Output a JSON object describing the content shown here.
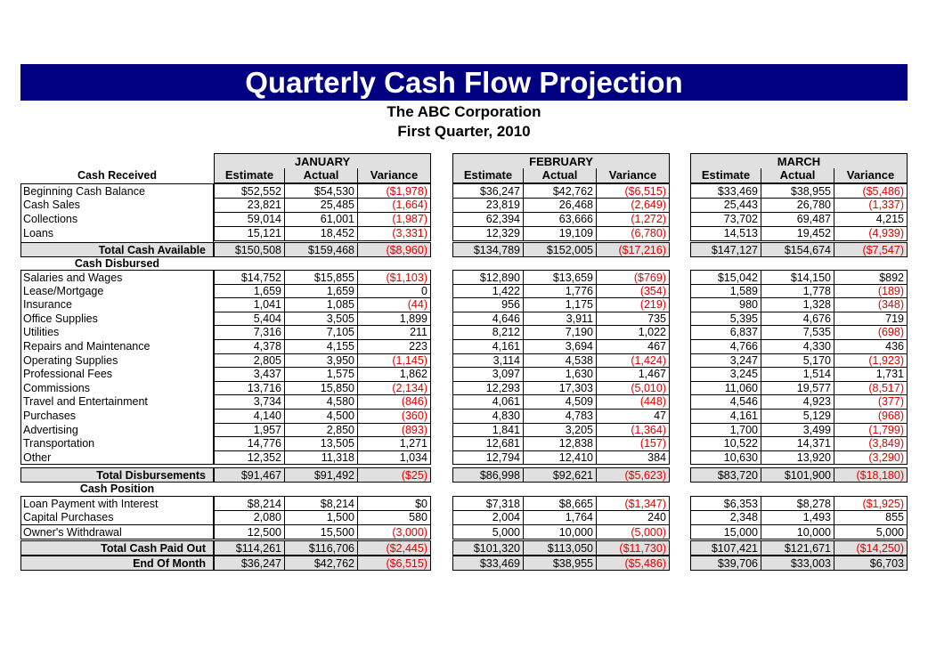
{
  "title": "Quarterly Cash Flow Projection",
  "company": "The ABC Corporation",
  "period": "First Quarter, 2010",
  "months": [
    "JANUARY",
    "FEBRUARY",
    "MARCH"
  ],
  "column_headers": [
    "Estimate",
    "Actual",
    "Variance"
  ],
  "colors": {
    "banner": "#000080",
    "header_fill": "#e0e0e0",
    "negative": "#e00000"
  },
  "sections": [
    {
      "heading": "Cash Received",
      "rows": [
        {
          "label": "Beginning Cash Balance",
          "values": [
            "$52,552",
            "$54,530",
            "($1,978)",
            "$36,247",
            "$42,762",
            "($6,515)",
            "$33,469",
            "$38,955",
            "($5,486)"
          ]
        },
        {
          "label": "Cash Sales",
          "values": [
            "23,821",
            "25,485",
            "(1,664)",
            "23,819",
            "26,468",
            "(2,649)",
            "25,443",
            "26,780",
            "(1,337)"
          ]
        },
        {
          "label": "Collections",
          "values": [
            "59,014",
            "61,001",
            "(1,987)",
            "62,394",
            "63,666",
            "(1,272)",
            "73,702",
            "69,487",
            "4,215"
          ]
        },
        {
          "label": "Loans",
          "values": [
            "15,121",
            "18,452",
            "(3,331)",
            "12,329",
            "19,109",
            "(6,780)",
            "14,513",
            "19,452",
            "(4,939)"
          ]
        }
      ],
      "total": {
        "label": "Total Cash Available",
        "values": [
          "$150,508",
          "$159,468",
          "($8,960)",
          "$134,789",
          "$152,005",
          "($17,216)",
          "$147,127",
          "$154,674",
          "($7,547)"
        ]
      }
    },
    {
      "heading": "Cash Disbursed",
      "rows": [
        {
          "label": "Salaries and Wages",
          "values": [
            "$14,752",
            "$15,855",
            "($1,103)",
            "$12,890",
            "$13,659",
            "($769)",
            "$15,042",
            "$14,150",
            "$892"
          ]
        },
        {
          "label": "Lease/Mortgage",
          "values": [
            "1,659",
            "1,659",
            "0",
            "1,422",
            "1,776",
            "(354)",
            "1,589",
            "1,778",
            "(189)"
          ]
        },
        {
          "label": "Insurance",
          "values": [
            "1,041",
            "1,085",
            "(44)",
            "956",
            "1,175",
            "(219)",
            "980",
            "1,328",
            "(348)"
          ]
        },
        {
          "label": "Office Supplies",
          "values": [
            "5,404",
            "3,505",
            "1,899",
            "4,646",
            "3,911",
            "735",
            "5,395",
            "4,676",
            "719"
          ]
        },
        {
          "label": "Utilities",
          "values": [
            "7,316",
            "7,105",
            "211",
            "8,212",
            "7,190",
            "1,022",
            "6,837",
            "7,535",
            "(698)"
          ]
        },
        {
          "label": "Repairs and Maintenance",
          "values": [
            "4,378",
            "4,155",
            "223",
            "4,161",
            "3,694",
            "467",
            "4,766",
            "4,330",
            "436"
          ]
        },
        {
          "label": "Operating Supplies",
          "values": [
            "2,805",
            "3,950",
            "(1,145)",
            "3,114",
            "4,538",
            "(1,424)",
            "3,247",
            "5,170",
            "(1,923)"
          ]
        },
        {
          "label": "Professional Fees",
          "values": [
            "3,437",
            "1,575",
            "1,862",
            "3,097",
            "1,630",
            "1,467",
            "3,245",
            "1,514",
            "1,731"
          ]
        },
        {
          "label": "Commissions",
          "values": [
            "13,716",
            "15,850",
            "(2,134)",
            "12,293",
            "17,303",
            "(5,010)",
            "11,060",
            "19,577",
            "(8,517)"
          ]
        },
        {
          "label": "Travel and Entertainment",
          "values": [
            "3,734",
            "4,580",
            "(846)",
            "4,061",
            "4,509",
            "(448)",
            "4,546",
            "4,923",
            "(377)"
          ]
        },
        {
          "label": "Purchases",
          "values": [
            "4,140",
            "4,500",
            "(360)",
            "4,830",
            "4,783",
            "47",
            "4,161",
            "5,129",
            "(968)"
          ]
        },
        {
          "label": "Advertising",
          "values": [
            "1,957",
            "2,850",
            "(893)",
            "1,841",
            "3,205",
            "(1,364)",
            "1,700",
            "3,499",
            "(1,799)"
          ]
        },
        {
          "label": "Transportation",
          "values": [
            "14,776",
            "13,505",
            "1,271",
            "12,681",
            "12,838",
            "(157)",
            "10,522",
            "14,371",
            "(3,849)"
          ]
        },
        {
          "label": "Other",
          "values": [
            "12,352",
            "11,318",
            "1,034",
            "12,794",
            "12,410",
            "384",
            "10,630",
            "13,920",
            "(3,290)"
          ]
        }
      ],
      "total": {
        "label": "Total Disbursements",
        "values": [
          "$91,467",
          "$91,492",
          "($25)",
          "$86,998",
          "$92,621",
          "($5,623)",
          "$83,720",
          "$101,900",
          "($18,180)"
        ]
      }
    },
    {
      "heading": "Cash Position",
      "rows": [
        {
          "label": "Loan Payment with Interest",
          "values": [
            "$8,214",
            "$8,214",
            "$0",
            "$7,318",
            "$8,665",
            "($1,347)",
            "$6,353",
            "$8,278",
            "($1,925)"
          ]
        },
        {
          "label": "Capital Purchases",
          "values": [
            "2,080",
            "1,500",
            "580",
            "2,004",
            "1,764",
            "240",
            "2,348",
            "1,493",
            "855"
          ]
        },
        {
          "label": "Owner's Withdrawal",
          "values": [
            "12,500",
            "15,500",
            "(3,000)",
            "5,000",
            "10,000",
            "(5,000)",
            "15,000",
            "10,000",
            "5,000"
          ]
        }
      ],
      "totals": [
        {
          "label": "Total Cash Paid Out",
          "values": [
            "$114,261",
            "$116,706",
            "($2,445)",
            "$101,320",
            "$113,050",
            "($11,730)",
            "$107,421",
            "$121,671",
            "($14,250)"
          ]
        },
        {
          "label": "End Of Month",
          "values": [
            "$36,247",
            "$42,762",
            "($6,515)",
            "$33,469",
            "$38,955",
            "($5,486)",
            "$39,706",
            "$33,003",
            "$6,703"
          ]
        }
      ]
    }
  ]
}
